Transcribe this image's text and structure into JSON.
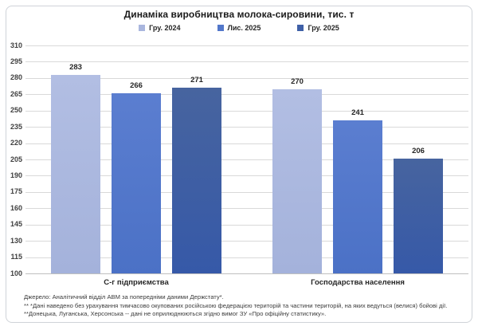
{
  "title": "Динаміка виробництва молока-сировини, тис. т",
  "chart_data": {
    "type": "bar",
    "title": "Динаміка виробництва молока-сировини, тис. т",
    "categories": [
      "С-г підприємства",
      "Господарства населення"
    ],
    "series": [
      {
        "name": "Гру. 2024",
        "values": [
          283,
          270
        ],
        "color": "#a9b6de"
      },
      {
        "name": "Лис. 2025",
        "values": [
          266,
          241
        ],
        "color": "#5277ca"
      },
      {
        "name": "Гру. 2025",
        "values": [
          271,
          206
        ],
        "color": "#3f60a7"
      }
    ],
    "ylabel": "",
    "xlabel": "",
    "ylim": [
      100,
      310
    ],
    "ytick_step": 15,
    "ytick_labels": [
      100,
      115,
      130,
      145,
      160,
      175,
      190,
      205,
      220,
      235,
      250,
      265,
      280,
      295,
      310
    ],
    "grid": true,
    "legend_position": "top",
    "data_labels": true
  },
  "footnotes": [
    "Джерело:  Аналітичний відділ АВМ за попередніми даними Держстату*.",
    "** *Дані наведено  без урахування тимчасово окупованих російською федерацією територій та частини територій, на яких ведуться  (велися) бойові дії.",
    "**Донецька,  Луганська, Херсонська -- дані не оприлюднюються  згідно вимог ЗУ «Про офіційну статистику»."
  ],
  "colors": {
    "gridline": "#d9d9d9",
    "axis_line": "#bfbfbf",
    "frame_border": "#cfd3d8",
    "text": "#262626"
  }
}
